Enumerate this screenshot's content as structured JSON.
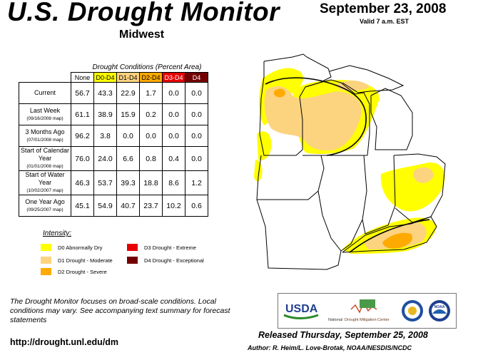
{
  "header": {
    "title": "U.S. Drought Monitor",
    "region": "Midwest",
    "date": "September 23, 2008",
    "valid": "Valid 7 a.m. EST"
  },
  "conditions_table": {
    "caption": "Drought Conditions (Percent Area)",
    "columns": [
      {
        "label": "None",
        "color": "#ffffff"
      },
      {
        "label": "D0-D4",
        "color": "#ffff00"
      },
      {
        "label": "D1-D4",
        "color": "#fcd37f"
      },
      {
        "label": "D2-D4",
        "color": "#ffaa00"
      },
      {
        "label": "D3-D4",
        "color": "#e60000"
      },
      {
        "label": "D4",
        "color": "#730000"
      }
    ],
    "rows": [
      {
        "label": "Current",
        "sub": "",
        "values": [
          "56.7",
          "43.3",
          "22.9",
          "1.7",
          "0.0",
          "0.0"
        ]
      },
      {
        "label": "Last Week",
        "sub": "(09/16/2008 map)",
        "values": [
          "61.1",
          "38.9",
          "15.9",
          "0.2",
          "0.0",
          "0.0"
        ]
      },
      {
        "label": "3 Months Ago",
        "sub": "(07/01/2008 map)",
        "values": [
          "96.2",
          "3.8",
          "0.0",
          "0.0",
          "0.0",
          "0.0"
        ]
      },
      {
        "label": "Start of Calendar Year",
        "sub": "(01/01/2008 map)",
        "values": [
          "76.0",
          "24.0",
          "6.6",
          "0.8",
          "0.4",
          "0.0"
        ]
      },
      {
        "label": "Start of Water Year",
        "sub": "(10/02/2007 map)",
        "values": [
          "46.3",
          "53.7",
          "39.3",
          "18.8",
          "8.6",
          "1.2"
        ]
      },
      {
        "label": "One Year Ago",
        "sub": "(09/25/2007 map)",
        "values": [
          "45.1",
          "54.9",
          "40.7",
          "23.7",
          "10.2",
          "0.6"
        ]
      }
    ]
  },
  "legend": {
    "title": "Intensity:",
    "items": [
      {
        "label": "D0 Abnormally Dry",
        "color": "#ffff00"
      },
      {
        "label": "D1 Drought - Moderate",
        "color": "#fcd37f"
      },
      {
        "label": "D2 Drought - Severe",
        "color": "#ffaa00"
      },
      {
        "label": "D3 Drought - Extreme",
        "color": "#e60000"
      },
      {
        "label": "D4 Drought - Exceptional",
        "color": "#730000"
      }
    ]
  },
  "footer": {
    "note": "The Drought Monitor focuses on broad-scale conditions. Local conditions may vary. See accompanying text summary for forecast statements",
    "url": "http://drought.unl.edu/dm",
    "released": "Released Thursday, September 25, 2008",
    "author": "Author: R. Heim/L. Love-Brotak, NOAA/NESDIS/NCDC"
  },
  "logos": {
    "usda": "USDA",
    "ndmc_prefix": "National",
    "ndmc_name": "Drought Mitigation Center",
    "noaa": "NOAA"
  }
}
